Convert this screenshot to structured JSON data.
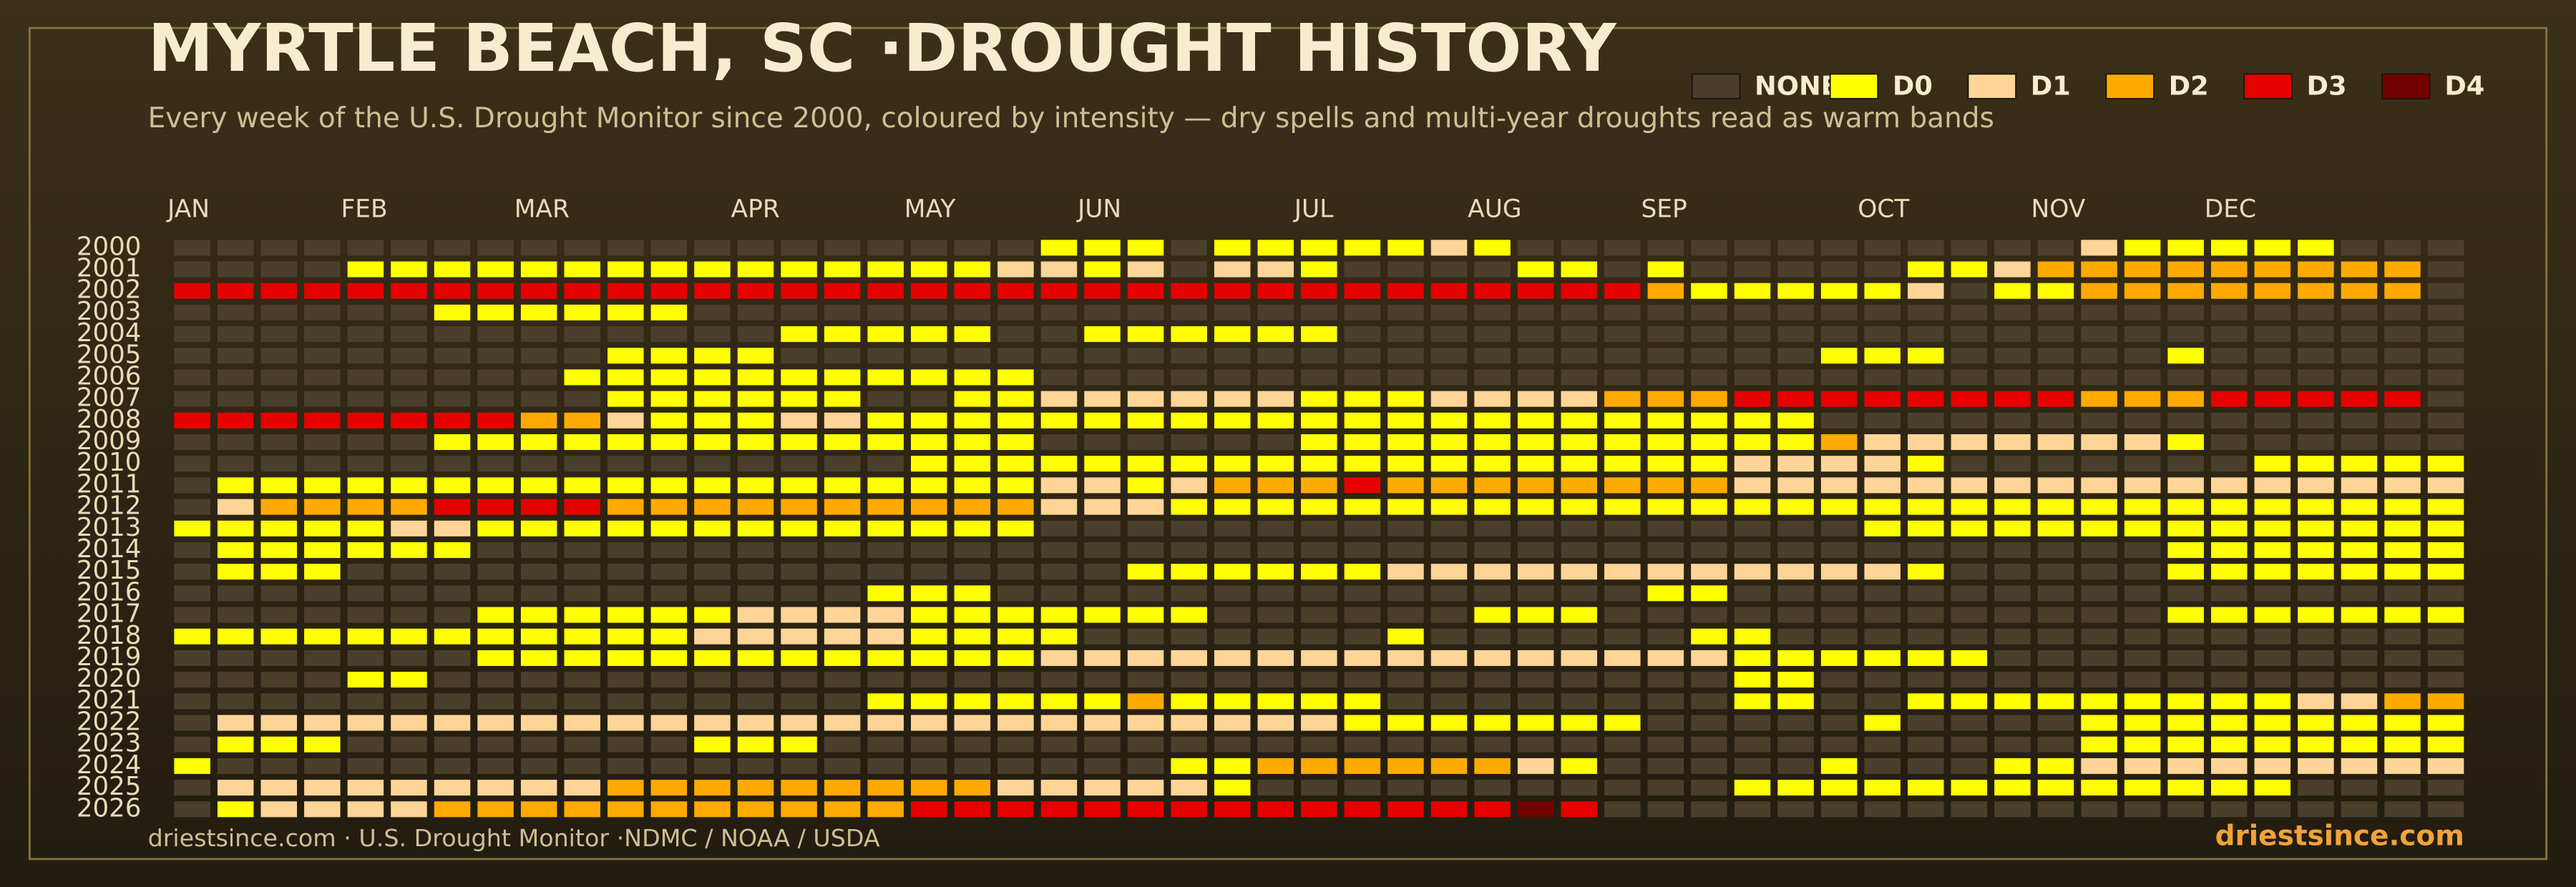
{
  "chart_data": {
    "type": "heatmap",
    "title": "MYRTLE BEACH, SC ·DROUGHT HISTORY",
    "subtitle": "Every week of the U.S. Drought Monitor since 2000, coloured by intensity — dry spells and multi-year droughts read as warm bands",
    "source": "driestsince.com  · U.S. Drought Monitor ·NDMC / NOAA / USDA",
    "brand": "driestsince.com",
    "legend": [
      {
        "name": "NONE",
        "color": "#4a3f2b"
      },
      {
        "name": "D0",
        "color": "#ffff00"
      },
      {
        "name": "D1",
        "color": "#ffd597"
      },
      {
        "name": "D2",
        "color": "#ffaa00"
      },
      {
        "name": "D3",
        "color": "#e60000"
      },
      {
        "name": "D4",
        "color": "#730000"
      }
    ],
    "x": [
      "JAN",
      null,
      null,
      null,
      "FEB",
      null,
      null,
      null,
      "MAR",
      null,
      null,
      null,
      null,
      "APR",
      null,
      null,
      null,
      "MAY",
      null,
      null,
      null,
      "JUN",
      null,
      null,
      null,
      null,
      "JUL",
      null,
      null,
      null,
      "AUG",
      null,
      null,
      null,
      "SEP",
      null,
      null,
      null,
      null,
      "OCT",
      null,
      null,
      null,
      "NOV",
      null,
      null,
      null,
      "DEC",
      null,
      null,
      null,
      null,
      null
    ],
    "y": [
      2000,
      2001,
      2002,
      2003,
      2004,
      2005,
      2006,
      2007,
      2008,
      2009,
      2010,
      2011,
      2012,
      2013,
      2014,
      2015,
      2016,
      2017,
      2018,
      2019,
      2020,
      2021,
      2022,
      2023,
      2024,
      2025,
      2026
    ],
    "values": [
      [
        0,
        0,
        0,
        0,
        0,
        0,
        0,
        0,
        0,
        0,
        0,
        0,
        0,
        0,
        0,
        0,
        0,
        0,
        0,
        0,
        1,
        1,
        1,
        0,
        1,
        1,
        1,
        1,
        1,
        2,
        1,
        0,
        0,
        0,
        0,
        0,
        0,
        0,
        0,
        0,
        0,
        0,
        0,
        0,
        2,
        1,
        1,
        1,
        1,
        1,
        0,
        0,
        0
      ],
      [
        0,
        0,
        0,
        0,
        1,
        1,
        1,
        1,
        1,
        1,
        1,
        1,
        1,
        1,
        1,
        1,
        1,
        1,
        1,
        2,
        2,
        1,
        2,
        0,
        2,
        2,
        1,
        0,
        0,
        0,
        0,
        1,
        1,
        0,
        1,
        0,
        0,
        0,
        0,
        0,
        1,
        1,
        2,
        3,
        3,
        3,
        3,
        3,
        3,
        3,
        3,
        3,
        0
      ],
      [
        4,
        4,
        4,
        4,
        4,
        4,
        4,
        4,
        4,
        4,
        4,
        4,
        4,
        4,
        4,
        4,
        4,
        4,
        4,
        4,
        4,
        4,
        4,
        4,
        4,
        4,
        4,
        4,
        4,
        4,
        4,
        4,
        4,
        4,
        3,
        1,
        1,
        1,
        1,
        1,
        2,
        0,
        1,
        1,
        3,
        3,
        3,
        3,
        3,
        3,
        3,
        3,
        0
      ],
      [
        0,
        0,
        0,
        0,
        0,
        0,
        1,
        1,
        1,
        1,
        1,
        1,
        0,
        0,
        0,
        0,
        0,
        0,
        0,
        0,
        0,
        0,
        0,
        0,
        0,
        0,
        0,
        0,
        0,
        0,
        0,
        0,
        0,
        0,
        0,
        0,
        0,
        0,
        0,
        0,
        0,
        0,
        0,
        0,
        0,
        0,
        0,
        0,
        0,
        0,
        0,
        0,
        0
      ],
      [
        0,
        0,
        0,
        0,
        0,
        0,
        0,
        0,
        0,
        0,
        0,
        0,
        0,
        0,
        1,
        1,
        1,
        1,
        1,
        0,
        0,
        1,
        1,
        1,
        1,
        1,
        1,
        0,
        0,
        0,
        0,
        0,
        0,
        0,
        0,
        0,
        0,
        0,
        0,
        0,
        0,
        0,
        0,
        0,
        0,
        0,
        0,
        0,
        0,
        0,
        0,
        0,
        0
      ],
      [
        0,
        0,
        0,
        0,
        0,
        0,
        0,
        0,
        0,
        0,
        1,
        1,
        1,
        1,
        0,
        0,
        0,
        0,
        0,
        0,
        0,
        0,
        0,
        0,
        0,
        0,
        0,
        0,
        0,
        0,
        0,
        0,
        0,
        0,
        0,
        0,
        0,
        0,
        1,
        1,
        1,
        0,
        0,
        0,
        0,
        0,
        1,
        0,
        0,
        0,
        0,
        0,
        0
      ],
      [
        0,
        0,
        0,
        0,
        0,
        0,
        0,
        0,
        0,
        1,
        1,
        1,
        1,
        1,
        1,
        1,
        1,
        1,
        1,
        1,
        0,
        0,
        0,
        0,
        0,
        0,
        0,
        0,
        0,
        0,
        0,
        0,
        0,
        0,
        0,
        0,
        0,
        0,
        0,
        0,
        0,
        0,
        0,
        0,
        0,
        0,
        0,
        0,
        0,
        0,
        0,
        0,
        0
      ],
      [
        0,
        0,
        0,
        0,
        0,
        0,
        0,
        0,
        0,
        0,
        1,
        1,
        1,
        1,
        1,
        1,
        0,
        0,
        1,
        1,
        2,
        2,
        2,
        2,
        2,
        2,
        1,
        1,
        1,
        2,
        2,
        2,
        2,
        3,
        3,
        3,
        4,
        4,
        4,
        4,
        4,
        4,
        4,
        4,
        3,
        3,
        3,
        4,
        4,
        4,
        4,
        4,
        0
      ],
      [
        4,
        4,
        4,
        4,
        4,
        4,
        4,
        4,
        3,
        3,
        2,
        1,
        1,
        1,
        2,
        2,
        1,
        1,
        1,
        1,
        1,
        1,
        1,
        1,
        1,
        1,
        1,
        1,
        1,
        1,
        1,
        1,
        1,
        1,
        1,
        1,
        1,
        1,
        0,
        0,
        0,
        0,
        0,
        0,
        0,
        0,
        0,
        0,
        0,
        0,
        0,
        0,
        0
      ],
      [
        0,
        0,
        0,
        0,
        0,
        0,
        1,
        1,
        1,
        1,
        1,
        1,
        1,
        1,
        1,
        1,
        1,
        1,
        1,
        1,
        0,
        0,
        0,
        0,
        0,
        0,
        1,
        1,
        1,
        1,
        1,
        1,
        1,
        1,
        1,
        1,
        1,
        1,
        3,
        2,
        2,
        2,
        2,
        2,
        2,
        2,
        1,
        0,
        0,
        0,
        0,
        0,
        0
      ],
      [
        0,
        0,
        0,
        0,
        0,
        0,
        0,
        0,
        0,
        0,
        0,
        0,
        0,
        0,
        0,
        0,
        0,
        1,
        1,
        1,
        1,
        1,
        1,
        1,
        1,
        1,
        1,
        1,
        1,
        1,
        1,
        1,
        1,
        1,
        1,
        1,
        2,
        2,
        2,
        2,
        1,
        0,
        0,
        0,
        0,
        0,
        0,
        0,
        1,
        1,
        1,
        1,
        1
      ],
      [
        0,
        1,
        1,
        1,
        1,
        1,
        1,
        1,
        1,
        1,
        1,
        1,
        1,
        1,
        1,
        1,
        1,
        1,
        1,
        1,
        2,
        2,
        1,
        2,
        3,
        3,
        3,
        4,
        3,
        3,
        3,
        3,
        3,
        3,
        3,
        3,
        2,
        2,
        2,
        2,
        2,
        2,
        2,
        2,
        2,
        2,
        2,
        2,
        2,
        2,
        2,
        2,
        2
      ],
      [
        0,
        2,
        3,
        3,
        3,
        3,
        4,
        4,
        4,
        4,
        3,
        3,
        3,
        3,
        3,
        3,
        3,
        3,
        3,
        3,
        2,
        2,
        2,
        1,
        1,
        1,
        1,
        1,
        1,
        1,
        1,
        1,
        1,
        1,
        1,
        1,
        1,
        1,
        1,
        1,
        1,
        1,
        1,
        1,
        1,
        1,
        1,
        1,
        1,
        1,
        1,
        1,
        1
      ],
      [
        1,
        1,
        1,
        1,
        1,
        2,
        2,
        1,
        1,
        1,
        1,
        1,
        1,
        1,
        1,
        1,
        1,
        1,
        1,
        1,
        0,
        0,
        0,
        0,
        0,
        0,
        0,
        0,
        0,
        0,
        0,
        0,
        0,
        0,
        0,
        0,
        0,
        0,
        0,
        1,
        1,
        1,
        1,
        1,
        1,
        1,
        1,
        1,
        1,
        1,
        1,
        1,
        1
      ],
      [
        0,
        1,
        1,
        1,
        1,
        1,
        1,
        0,
        0,
        0,
        0,
        0,
        0,
        0,
        0,
        0,
        0,
        0,
        0,
        0,
        0,
        0,
        0,
        0,
        0,
        0,
        0,
        0,
        0,
        0,
        0,
        0,
        0,
        0,
        0,
        0,
        0,
        0,
        0,
        0,
        0,
        0,
        0,
        0,
        0,
        0,
        1,
        1,
        1,
        1,
        1,
        1,
        1
      ],
      [
        0,
        1,
        1,
        1,
        0,
        0,
        0,
        0,
        0,
        0,
        0,
        0,
        0,
        0,
        0,
        0,
        0,
        0,
        0,
        0,
        0,
        0,
        1,
        1,
        1,
        1,
        1,
        1,
        2,
        2,
        2,
        2,
        2,
        2,
        2,
        2,
        2,
        2,
        2,
        2,
        1,
        0,
        0,
        0,
        0,
        0,
        1,
        1,
        1,
        1,
        1,
        1,
        1
      ],
      [
        0,
        0,
        0,
        0,
        0,
        0,
        0,
        0,
        0,
        0,
        0,
        0,
        0,
        0,
        0,
        0,
        1,
        1,
        1,
        0,
        0,
        0,
        0,
        0,
        0,
        0,
        0,
        0,
        0,
        0,
        0,
        0,
        0,
        0,
        1,
        1,
        0,
        0,
        0,
        0,
        0,
        0,
        0,
        0,
        0,
        0,
        0,
        0,
        0,
        0,
        0,
        0,
        0
      ],
      [
        0,
        0,
        0,
        0,
        0,
        0,
        0,
        1,
        1,
        1,
        1,
        1,
        1,
        2,
        2,
        2,
        2,
        1,
        1,
        1,
        1,
        1,
        1,
        1,
        0,
        0,
        0,
        0,
        0,
        0,
        1,
        1,
        1,
        0,
        0,
        0,
        0,
        0,
        0,
        0,
        0,
        0,
        0,
        0,
        0,
        0,
        1,
        1,
        1,
        1,
        1,
        1,
        1
      ],
      [
        1,
        1,
        1,
        1,
        1,
        1,
        1,
        1,
        1,
        1,
        1,
        1,
        2,
        2,
        2,
        2,
        2,
        1,
        1,
        1,
        1,
        0,
        0,
        0,
        0,
        0,
        0,
        0,
        1,
        0,
        0,
        0,
        0,
        0,
        0,
        1,
        1,
        0,
        0,
        0,
        0,
        0,
        0,
        0,
        0,
        0,
        0,
        0,
        0,
        0,
        0,
        0,
        0
      ],
      [
        0,
        0,
        0,
        0,
        0,
        0,
        0,
        1,
        1,
        1,
        1,
        1,
        1,
        1,
        1,
        1,
        1,
        1,
        1,
        1,
        2,
        2,
        2,
        2,
        2,
        2,
        2,
        2,
        2,
        2,
        2,
        2,
        2,
        2,
        2,
        2,
        1,
        1,
        1,
        1,
        1,
        1,
        0,
        0,
        0,
        0,
        0,
        0,
        0,
        0,
        0,
        0,
        0
      ],
      [
        0,
        0,
        0,
        0,
        1,
        1,
        0,
        0,
        0,
        0,
        0,
        0,
        0,
        0,
        0,
        0,
        0,
        0,
        0,
        0,
        0,
        0,
        0,
        0,
        0,
        0,
        0,
        0,
        0,
        0,
        0,
        0,
        0,
        0,
        0,
        0,
        1,
        1,
        0,
        0,
        0,
        0,
        0,
        0,
        0,
        0,
        0,
        0,
        0,
        0,
        0,
        0,
        0
      ],
      [
        0,
        0,
        0,
        0,
        0,
        0,
        0,
        0,
        0,
        0,
        0,
        0,
        0,
        0,
        0,
        0,
        1,
        1,
        1,
        1,
        1,
        1,
        3,
        1,
        1,
        1,
        1,
        1,
        0,
        0,
        0,
        0,
        0,
        0,
        0,
        0,
        1,
        1,
        0,
        0,
        1,
        1,
        1,
        1,
        1,
        1,
        1,
        1,
        1,
        2,
        2,
        3,
        3
      ],
      [
        0,
        2,
        2,
        2,
        2,
        2,
        2,
        2,
        2,
        2,
        2,
        2,
        2,
        2,
        2,
        2,
        2,
        2,
        2,
        2,
        2,
        2,
        2,
        2,
        2,
        2,
        2,
        1,
        1,
        1,
        1,
        1,
        1,
        1,
        0,
        0,
        0,
        0,
        0,
        1,
        0,
        0,
        0,
        0,
        1,
        1,
        1,
        1,
        1,
        1,
        1,
        1,
        1
      ],
      [
        0,
        1,
        1,
        1,
        0,
        0,
        0,
        0,
        0,
        0,
        0,
        0,
        1,
        1,
        1,
        0,
        0,
        0,
        0,
        0,
        0,
        0,
        0,
        0,
        0,
        0,
        0,
        0,
        0,
        0,
        0,
        0,
        0,
        0,
        0,
        0,
        0,
        0,
        0,
        0,
        0,
        0,
        0,
        0,
        1,
        1,
        1,
        1,
        1,
        1,
        1,
        1,
        1
      ],
      [
        1,
        0,
        0,
        0,
        0,
        0,
        0,
        0,
        0,
        0,
        0,
        0,
        0,
        0,
        0,
        0,
        0,
        0,
        0,
        0,
        0,
        0,
        0,
        1,
        1,
        3,
        3,
        3,
        3,
        3,
        3,
        2,
        1,
        0,
        0,
        0,
        0,
        0,
        1,
        0,
        0,
        0,
        1,
        1,
        2,
        2,
        2,
        2,
        2,
        2,
        2,
        2,
        2
      ],
      [
        0,
        2,
        2,
        2,
        2,
        2,
        2,
        2,
        2,
        2,
        3,
        3,
        3,
        3,
        3,
        3,
        3,
        3,
        3,
        2,
        2,
        2,
        2,
        2,
        1,
        0,
        0,
        0,
        0,
        0,
        0,
        0,
        0,
        0,
        0,
        0,
        1,
        1,
        1,
        1,
        1,
        1,
        1,
        1,
        1,
        1,
        1,
        1,
        1,
        0,
        0,
        0,
        0
      ],
      [
        0,
        1,
        2,
        2,
        2,
        2,
        3,
        3,
        3,
        3,
        3,
        3,
        3,
        3,
        3,
        3,
        3,
        4,
        4,
        4,
        4,
        4,
        4,
        4,
        4,
        4,
        4,
        4,
        4,
        4,
        4,
        5,
        4,
        0,
        0,
        0,
        0,
        0,
        0,
        0,
        0,
        0,
        0,
        0,
        0,
        0,
        0,
        0,
        0,
        0,
        0,
        0,
        0
      ]
    ]
  }
}
